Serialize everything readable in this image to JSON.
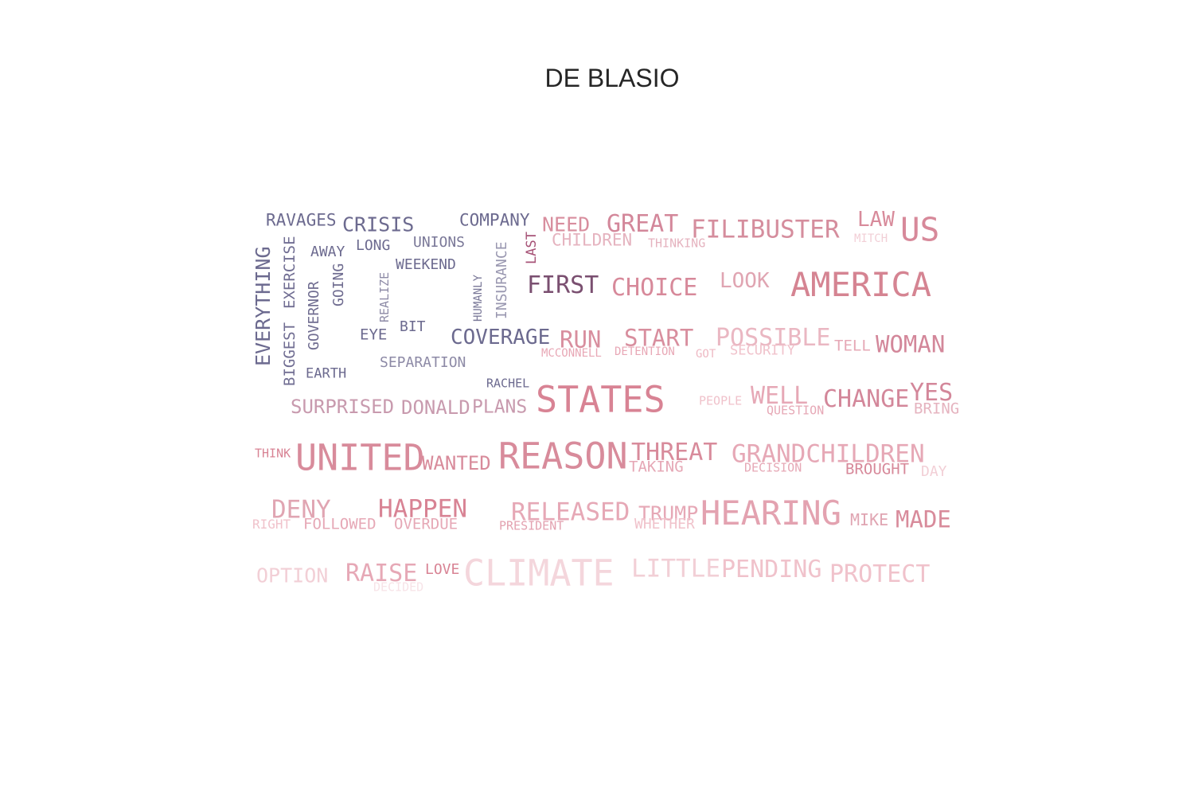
{
  "title": "DE BLASIO",
  "words": [
    {
      "text": "RAVAGES",
      "color": "#6c6a8f"
    },
    {
      "text": "CRISIS",
      "color": "#6c6a8f"
    },
    {
      "text": "COMPANY",
      "color": "#6c6a8f"
    },
    {
      "text": "NEED",
      "color": "#d88e9e"
    },
    {
      "text": "GREAT",
      "color": "#d3879a"
    },
    {
      "text": "FILIBUSTER",
      "color": "#d58d9d"
    },
    {
      "text": "LAW",
      "color": "#d88b9b"
    },
    {
      "text": "US",
      "color": "#d7899a"
    },
    {
      "text": "EVERYTHING",
      "color": "#6c6a8f"
    },
    {
      "text": "BIGGEST",
      "color": "#716e93"
    },
    {
      "text": "EXERCISE",
      "color": "#716e93"
    },
    {
      "text": "GOVERNOR",
      "color": "#6f6c90"
    },
    {
      "text": "GOING",
      "color": "#6f6c90"
    },
    {
      "text": "AWAY",
      "color": "#6c6a8f"
    },
    {
      "text": "LONG",
      "color": "#6c6a8f"
    },
    {
      "text": "UNIONS",
      "color": "#7a7898"
    },
    {
      "text": "WEEKEND",
      "color": "#6c6a8f"
    },
    {
      "text": "REALIZE",
      "color": "#8d8aa6"
    },
    {
      "text": "HUMANLY",
      "color": "#7a7898"
    },
    {
      "text": "INSURANCE",
      "color": "#9997b0"
    },
    {
      "text": "LAST",
      "color": "#a75377"
    },
    {
      "text": "CHILDREN",
      "color": "#e5b3bf"
    },
    {
      "text": "THINKING",
      "color": "#e5b3bf"
    },
    {
      "text": "MITCH",
      "color": "#f2cfd6"
    },
    {
      "text": "FIRST",
      "color": "#7a4f70"
    },
    {
      "text": "CHOICE",
      "color": "#d7899a"
    },
    {
      "text": "LOOK",
      "color": "#e0a5b2"
    },
    {
      "text": "AMERICA",
      "color": "#d58492"
    },
    {
      "text": "EYE",
      "color": "#6c6a8f"
    },
    {
      "text": "BIT",
      "color": "#6c6a8f"
    },
    {
      "text": "COVERAGE",
      "color": "#6c6a8f"
    },
    {
      "text": "RUN",
      "color": "#d88e9e"
    },
    {
      "text": "START",
      "color": "#d88e9e"
    },
    {
      "text": "POSSIBLE",
      "color": "#eab7c2"
    },
    {
      "text": "TELL",
      "color": "#e6a8b6"
    },
    {
      "text": "WOMAN",
      "color": "#d3879a"
    },
    {
      "text": "MCCONNELL",
      "color": "#e8a8b6"
    },
    {
      "text": "DETENTION",
      "color": "#e8a8b6"
    },
    {
      "text": "GOT",
      "color": "#eeb8c3"
    },
    {
      "text": "SECURITY",
      "color": "#f0c2cb"
    },
    {
      "text": "EARTH",
      "color": "#6c6a8f"
    },
    {
      "text": "SEPARATION",
      "color": "#8d8aa6"
    },
    {
      "text": "RACHEL",
      "color": "#6c6a8f"
    },
    {
      "text": "SURPRISED",
      "color": "#c89aae"
    },
    {
      "text": "DONALD",
      "color": "#c89aae"
    },
    {
      "text": "PLANS",
      "color": "#c89aae"
    },
    {
      "text": "STATES",
      "color": "#d88394"
    },
    {
      "text": "PEOPLE",
      "color": "#f0c2cb"
    },
    {
      "text": "WELL",
      "color": "#e6a8b6"
    },
    {
      "text": "QUESTION",
      "color": "#e6a8b6"
    },
    {
      "text": "CHANGE",
      "color": "#d3879a"
    },
    {
      "text": "YES",
      "color": "#d3879a"
    },
    {
      "text": "BRING",
      "color": "#e5b3bf"
    },
    {
      "text": "THINK",
      "color": "#d88394"
    },
    {
      "text": "UNITED",
      "color": "#d88b9b"
    },
    {
      "text": "WANTED",
      "color": "#d88b9b"
    },
    {
      "text": "REASON",
      "color": "#d88b9b"
    },
    {
      "text": "THREAT",
      "color": "#d88b9b"
    },
    {
      "text": "TAKING",
      "color": "#e6a8b6"
    },
    {
      "text": "GRANDCHILDREN",
      "color": "#e6a8b6"
    },
    {
      "text": "DECISION",
      "color": "#e6a8b6"
    },
    {
      "text": "BROUGHT",
      "color": "#d7899a"
    },
    {
      "text": "DAY",
      "color": "#f2cfd6"
    },
    {
      "text": "DENY",
      "color": "#e0a5b2"
    },
    {
      "text": "HAPPEN",
      "color": "#d88394"
    },
    {
      "text": "RELEASED",
      "color": "#e6a8b6"
    },
    {
      "text": "TRUMP",
      "color": "#e6a8b6"
    },
    {
      "text": "HEARING",
      "color": "#e3a2b0"
    },
    {
      "text": "MIKE",
      "color": "#e0a5b2"
    },
    {
      "text": "MADE",
      "color": "#d88b9b"
    },
    {
      "text": "RIGHT",
      "color": "#f0c2cb"
    },
    {
      "text": "FOLLOWED",
      "color": "#e6a8b6"
    },
    {
      "text": "OVERDUE",
      "color": "#e6a8b6"
    },
    {
      "text": "PRESIDENT",
      "color": "#e3a2b0"
    },
    {
      "text": "WHETHER",
      "color": "#f0c2cb"
    },
    {
      "text": "OPTION",
      "color": "#f2cfd6"
    },
    {
      "text": "RAISE",
      "color": "#e6a8b6"
    },
    {
      "text": "LOVE",
      "color": "#d88394"
    },
    {
      "text": "DECIDED",
      "color": "#f7e3e7"
    },
    {
      "text": "CLIMATE",
      "color": "#f4d6dc"
    },
    {
      "text": "LITTLE",
      "color": "#f2cfd6"
    },
    {
      "text": "PENDING",
      "color": "#f0c2cb"
    },
    {
      "text": "PROTECT",
      "color": "#f0c2cb"
    }
  ]
}
